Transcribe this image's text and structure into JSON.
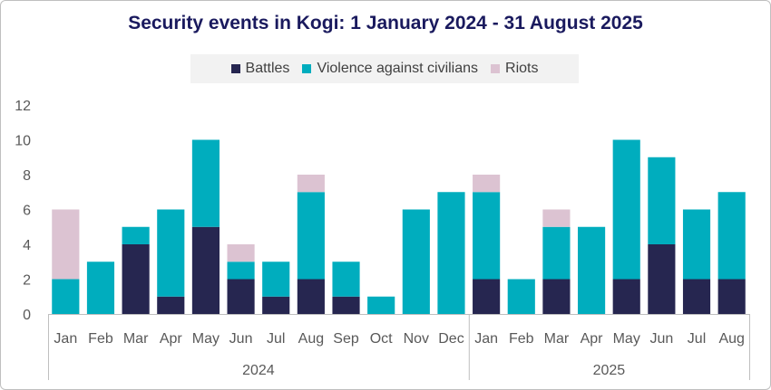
{
  "colors": {
    "battles": "#262650",
    "violence": "#00adbe",
    "riots": "#dcc3d2",
    "title": "#1a1a5e",
    "axis": "#bfbfbf"
  },
  "chart_data": {
    "type": "bar",
    "stacked": true,
    "title": "Security events in Kogi: 1 January 2024 - 31 August 2025",
    "legend_position": "top",
    "ylim": [
      0,
      12
    ],
    "yticks": [
      0,
      2,
      4,
      6,
      8,
      10,
      12
    ],
    "grid": false,
    "categories": [
      "Jan",
      "Feb",
      "Mar",
      "Apr",
      "May",
      "Jun",
      "Jul",
      "Aug",
      "Sep",
      "Oct",
      "Nov",
      "Dec",
      "Jan",
      "Feb",
      "Mar",
      "Apr",
      "May",
      "Jun",
      "Jul",
      "Aug"
    ],
    "groups": [
      {
        "label": "2024",
        "start": 0,
        "count": 12
      },
      {
        "label": "2025",
        "start": 12,
        "count": 8
      }
    ],
    "series": [
      {
        "name": "Battles",
        "color_key": "battles",
        "values": [
          0,
          0,
          4,
          1,
          5,
          2,
          1,
          2,
          1,
          0,
          0,
          0,
          2,
          0,
          2,
          0,
          2,
          4,
          2,
          2
        ]
      },
      {
        "name": "Violence against civilians",
        "color_key": "violence",
        "values": [
          2,
          3,
          1,
          5,
          5,
          1,
          2,
          5,
          2,
          1,
          6,
          7,
          5,
          2,
          3,
          5,
          8,
          5,
          4,
          5
        ]
      },
      {
        "name": "Riots",
        "color_key": "riots",
        "values": [
          4,
          0,
          0,
          0,
          0,
          1,
          0,
          1,
          0,
          0,
          0,
          0,
          1,
          0,
          1,
          0,
          0,
          0,
          0,
          0
        ]
      }
    ]
  }
}
